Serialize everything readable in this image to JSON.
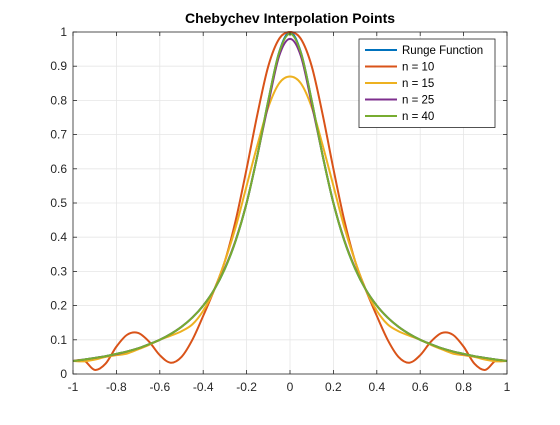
{
  "chart_data": {
    "type": "line",
    "title": "Chebychev Interpolation Points",
    "xlabel": "",
    "ylabel": "",
    "xlim": [
      -1,
      1
    ],
    "ylim": [
      0,
      1
    ],
    "xticks": [
      -1,
      -0.8,
      -0.6,
      -0.4,
      -0.2,
      0,
      0.2,
      0.4,
      0.6,
      0.8,
      1
    ],
    "xtick_labels": [
      "-1",
      "-0.8",
      "-0.6",
      "-0.4",
      "-0.2",
      "0",
      "0.2",
      "0.4",
      "0.6",
      "0.8",
      "1"
    ],
    "yticks": [
      0,
      0.1,
      0.2,
      0.3,
      0.4,
      0.5,
      0.6,
      0.7,
      0.8,
      0.9,
      1
    ],
    "ytick_labels": [
      "0",
      "0.1",
      "0.2",
      "0.3",
      "0.4",
      "0.5",
      "0.6",
      "0.7",
      "0.8",
      "0.9",
      "1"
    ],
    "grid": true,
    "legend_position": "top-right",
    "x": [
      -1,
      -0.95,
      -0.9,
      -0.85,
      -0.8,
      -0.75,
      -0.7,
      -0.65,
      -0.6,
      -0.55,
      -0.5,
      -0.45,
      -0.4,
      -0.35,
      -0.3,
      -0.25,
      -0.2,
      -0.15,
      -0.1,
      -0.05,
      0,
      0.05,
      0.1,
      0.15,
      0.2,
      0.25,
      0.3,
      0.35,
      0.4,
      0.45,
      0.5,
      0.55,
      0.6,
      0.65,
      0.7,
      0.75,
      0.8,
      0.85,
      0.9,
      0.95,
      1
    ],
    "series": [
      {
        "name": "Runge Function",
        "color": "#0072BD",
        "values": [
          0.038,
          0.042,
          0.047,
          0.052,
          0.059,
          0.066,
          0.075,
          0.087,
          0.1,
          0.117,
          0.138,
          0.165,
          0.2,
          0.246,
          0.308,
          0.39,
          0.5,
          0.64,
          0.8,
          0.941,
          1.0,
          0.941,
          0.8,
          0.64,
          0.5,
          0.39,
          0.308,
          0.246,
          0.2,
          0.165,
          0.138,
          0.117,
          0.1,
          0.087,
          0.075,
          0.066,
          0.059,
          0.052,
          0.047,
          0.042,
          0.038
        ]
      },
      {
        "name": "n = 10",
        "color": "#D95319",
        "values": [
          0.038,
          0.04,
          0.012,
          0.03,
          0.08,
          0.115,
          0.12,
          0.095,
          0.055,
          0.033,
          0.05,
          0.1,
          0.17,
          0.245,
          0.33,
          0.45,
          0.6,
          0.76,
          0.9,
          0.98,
          1.0,
          0.98,
          0.9,
          0.76,
          0.6,
          0.45,
          0.33,
          0.245,
          0.17,
          0.1,
          0.05,
          0.033,
          0.055,
          0.095,
          0.12,
          0.115,
          0.08,
          0.03,
          0.012,
          0.04,
          0.038
        ]
      },
      {
        "name": "n = 15",
        "color": "#EDB120",
        "values": [
          0.038,
          0.037,
          0.042,
          0.05,
          0.055,
          0.06,
          0.072,
          0.085,
          0.1,
          0.112,
          0.125,
          0.145,
          0.185,
          0.245,
          0.33,
          0.43,
          0.55,
          0.67,
          0.78,
          0.85,
          0.87,
          0.85,
          0.78,
          0.67,
          0.55,
          0.43,
          0.33,
          0.245,
          0.185,
          0.145,
          0.125,
          0.112,
          0.1,
          0.085,
          0.072,
          0.06,
          0.055,
          0.05,
          0.042,
          0.037,
          0.038
        ]
      },
      {
        "name": "n = 25",
        "color": "#7E2F8E",
        "values": [
          0.038,
          0.042,
          0.047,
          0.052,
          0.058,
          0.066,
          0.075,
          0.087,
          0.1,
          0.117,
          0.138,
          0.165,
          0.2,
          0.246,
          0.31,
          0.392,
          0.5,
          0.64,
          0.79,
          0.93,
          0.98,
          0.93,
          0.79,
          0.64,
          0.5,
          0.392,
          0.31,
          0.246,
          0.2,
          0.165,
          0.138,
          0.117,
          0.1,
          0.087,
          0.075,
          0.066,
          0.058,
          0.052,
          0.047,
          0.042,
          0.038
        ]
      },
      {
        "name": "n = 40",
        "color": "#77AC30",
        "values": [
          0.038,
          0.042,
          0.047,
          0.052,
          0.059,
          0.066,
          0.075,
          0.087,
          0.1,
          0.117,
          0.138,
          0.165,
          0.2,
          0.246,
          0.308,
          0.39,
          0.5,
          0.64,
          0.8,
          0.94,
          0.995,
          0.94,
          0.8,
          0.64,
          0.5,
          0.39,
          0.308,
          0.246,
          0.2,
          0.165,
          0.138,
          0.117,
          0.1,
          0.087,
          0.075,
          0.066,
          0.059,
          0.052,
          0.047,
          0.042,
          0.038
        ]
      }
    ]
  }
}
